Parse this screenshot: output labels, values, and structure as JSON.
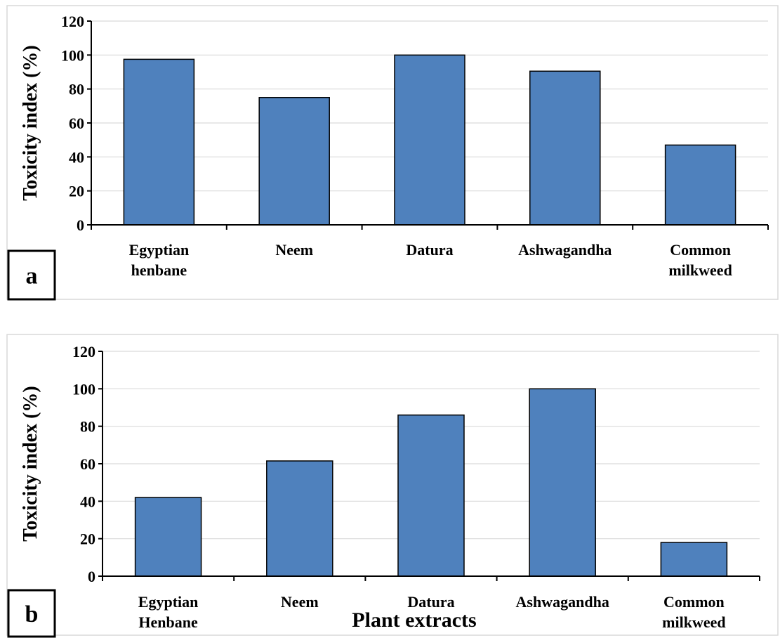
{
  "chart_data": [
    {
      "type": "bar",
      "panel_label": "a",
      "categories": [
        [
          "Egyptian",
          "henbane"
        ],
        [
          "Neem"
        ],
        [
          "Datura"
        ],
        [
          "Ashwagandha"
        ],
        [
          "Common",
          "milkweed"
        ]
      ],
      "values": [
        97.5,
        75,
        100,
        90.5,
        47
      ],
      "xlabel": "",
      "ylabel": "Toxicity index (%)",
      "yticks": [
        "0",
        "20",
        "40",
        "60",
        "80",
        "100",
        "120"
      ],
      "ylim": [
        0,
        120
      ],
      "grid": true,
      "bar_color": "#4f81bd",
      "bar_edge_color": "#000000"
    },
    {
      "type": "bar",
      "panel_label": "b",
      "categories": [
        [
          "Egyptian",
          "Henbane"
        ],
        [
          "Neem"
        ],
        [
          "Datura"
        ],
        [
          "Ashwagandha"
        ],
        [
          "Common",
          "milkweed"
        ]
      ],
      "values": [
        42,
        61.5,
        86,
        100,
        18
      ],
      "xlabel": "Plant extracts",
      "ylabel": "Toxicity index (%)",
      "yticks": [
        "0",
        "20",
        "40",
        "60",
        "80",
        "100",
        "120"
      ],
      "ylim": [
        0,
        120
      ],
      "grid": true,
      "bar_color": "#4f81bd",
      "bar_edge_color": "#000000"
    }
  ]
}
